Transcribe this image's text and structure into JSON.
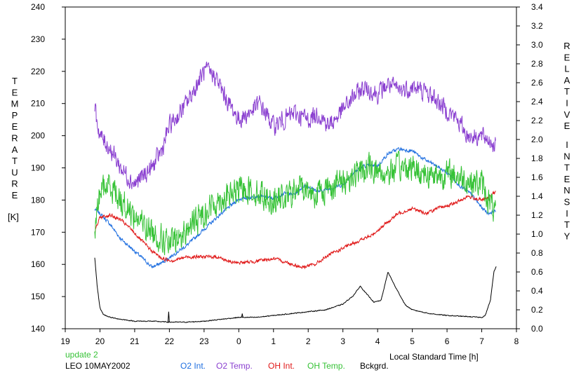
{
  "chart_data": {
    "type": "line",
    "x_axis": {
      "label": "Local Standard Time [h]",
      "ticks": [
        "19",
        "20",
        "21",
        "22",
        "23",
        "0",
        "1",
        "2",
        "3",
        "4",
        "5",
        "6",
        "7",
        "8"
      ]
    },
    "y_left": {
      "label_letters": [
        "T",
        "E",
        "M",
        "P",
        "E",
        "R",
        "A",
        "T",
        "U",
        "R",
        "E"
      ],
      "unit": "[K]",
      "range": [
        140,
        240
      ],
      "ticks": [
        "140",
        "150",
        "160",
        "170",
        "180",
        "190",
        "200",
        "210",
        "220",
        "230",
        "240"
      ]
    },
    "y_right": {
      "label_word1": [
        "R",
        "E",
        "L",
        "A",
        "T",
        "I",
        "V",
        "E"
      ],
      "label_word2": [
        "I",
        "N",
        "T",
        "E",
        "N",
        "S",
        "I",
        "T",
        "Y"
      ],
      "range": [
        0.0,
        3.4
      ],
      "ticks": [
        "0.0",
        "0.2",
        "0.4",
        "0.6",
        "0.8",
        "1.0",
        "1.2",
        "1.4",
        "1.6",
        "1.8",
        "2.0",
        "2.2",
        "2.4",
        "2.6",
        "2.8",
        "3.0",
        "3.2",
        "3.4"
      ]
    },
    "x_range_hours": [
      19,
      32
    ],
    "update_text": "update 2",
    "station_text": "LEO 10MAY2002",
    "series": [
      {
        "name": "O2 Int.",
        "color": "#1f6fe0",
        "axis": "right",
        "noise": 0.025,
        "x": [
          19.85,
          20.0,
          20.3,
          20.6,
          21.0,
          21.3,
          21.5,
          21.8,
          22.1,
          22.5,
          23.0,
          23.5,
          24.0,
          24.5,
          25.0,
          25.3,
          25.6,
          25.9,
          26.3,
          26.6,
          27.0,
          27.3,
          27.6,
          28.0,
          28.3,
          28.6,
          29.0,
          29.3,
          29.7,
          30.1,
          30.4,
          30.7,
          31.0,
          31.2,
          31.4
        ],
        "y": [
          1.26,
          1.22,
          1.1,
          0.95,
          0.82,
          0.72,
          0.65,
          0.7,
          0.78,
          0.88,
          1.05,
          1.22,
          1.37,
          1.4,
          1.38,
          1.43,
          1.42,
          1.52,
          1.45,
          1.48,
          1.52,
          1.65,
          1.72,
          1.72,
          1.85,
          1.9,
          1.88,
          1.8,
          1.72,
          1.62,
          1.5,
          1.42,
          1.28,
          1.22,
          1.25
        ]
      },
      {
        "name": "O2 Temp.",
        "color": "#8a3fd0",
        "axis": "left",
        "noise": 4,
        "x": [
          19.85,
          20.0,
          20.3,
          20.6,
          21.0,
          21.3,
          21.5,
          21.8,
          22.0,
          22.3,
          22.6,
          23.0,
          23.3,
          23.6,
          24.0,
          24.3,
          24.6,
          25.0,
          25.3,
          25.6,
          26.0,
          26.3,
          26.6,
          27.0,
          27.3,
          27.6,
          28.0,
          28.3,
          28.6,
          29.0,
          29.3,
          29.6,
          30.0,
          30.3,
          30.6,
          30.9,
          31.2,
          31.4
        ],
        "y": [
          208,
          200,
          196,
          190,
          185,
          188,
          190,
          196,
          203,
          207,
          212,
          220,
          219,
          212,
          205,
          207,
          210,
          203,
          205,
          207,
          205,
          207,
          203,
          208,
          212,
          215,
          213,
          216,
          214,
          215,
          214,
          212,
          208,
          205,
          200,
          200,
          199,
          197
        ]
      },
      {
        "name": "OH Int.",
        "color": "#e01818",
        "axis": "right",
        "noise": 0.025,
        "x": [
          19.85,
          20.0,
          20.3,
          20.6,
          20.9,
          21.2,
          21.5,
          21.8,
          22.1,
          22.5,
          23.0,
          23.4,
          23.8,
          24.2,
          24.6,
          25.0,
          25.4,
          25.8,
          26.2,
          26.6,
          27.0,
          27.4,
          27.8,
          28.2,
          28.6,
          29.0,
          29.4,
          29.8,
          30.2,
          30.6,
          31.0,
          31.2,
          31.4
        ],
        "y": [
          1.02,
          1.18,
          1.2,
          1.15,
          1.05,
          0.93,
          0.82,
          0.74,
          0.72,
          0.76,
          0.76,
          0.76,
          0.7,
          0.7,
          0.72,
          0.74,
          0.7,
          0.65,
          0.68,
          0.78,
          0.85,
          0.92,
          0.98,
          1.1,
          1.22,
          1.27,
          1.22,
          1.28,
          1.32,
          1.4,
          1.36,
          1.38,
          1.45
        ]
      },
      {
        "name": "OH Temp.",
        "color": "#36c236",
        "axis": "left",
        "noise": 6,
        "x": [
          19.85,
          20.0,
          20.3,
          20.6,
          21.0,
          21.3,
          21.5,
          21.8,
          22.0,
          22.3,
          22.6,
          23.0,
          23.4,
          23.8,
          24.2,
          24.6,
          25.0,
          25.4,
          25.8,
          26.2,
          26.6,
          27.0,
          27.4,
          27.8,
          28.2,
          28.6,
          29.0,
          29.4,
          29.8,
          30.2,
          30.6,
          31.0,
          31.2,
          31.4
        ],
        "y": [
          170,
          183,
          185,
          180,
          175,
          172,
          170,
          168,
          166,
          168,
          172,
          176,
          180,
          182,
          184,
          182,
          180,
          181,
          184,
          182,
          184,
          186,
          188,
          190,
          188,
          190,
          190,
          188,
          188,
          188,
          186,
          185,
          180,
          175
        ]
      },
      {
        "name": "Bckgrd.",
        "color": "#000000",
        "axis": "right",
        "noise": 0.006,
        "x": [
          19.85,
          19.92,
          20.0,
          20.1,
          20.3,
          20.6,
          21.0,
          21.5,
          22.0,
          22.5,
          23.0,
          23.5,
          24.0,
          24.5,
          25.0,
          25.5,
          26.0,
          26.5,
          27.0,
          27.3,
          27.5,
          27.7,
          27.9,
          28.1,
          28.3,
          28.5,
          28.8,
          29.0,
          29.5,
          30.0,
          30.5,
          31.0,
          31.1,
          31.25,
          31.35,
          31.42
        ],
        "y": [
          0.75,
          0.45,
          0.22,
          0.15,
          0.12,
          0.1,
          0.08,
          0.08,
          0.07,
          0.07,
          0.08,
          0.1,
          0.12,
          0.12,
          0.14,
          0.16,
          0.18,
          0.2,
          0.26,
          0.35,
          0.45,
          0.36,
          0.28,
          0.3,
          0.6,
          0.45,
          0.25,
          0.2,
          0.16,
          0.14,
          0.13,
          0.12,
          0.14,
          0.3,
          0.6,
          0.66
        ]
      }
    ],
    "spikes": [
      {
        "series": 4,
        "x": 21.98,
        "y": 0.18
      },
      {
        "series": 4,
        "x": 24.1,
        "y": 0.16
      },
      {
        "series": 4,
        "x": 25.7,
        "y": 0.17
      }
    ]
  }
}
